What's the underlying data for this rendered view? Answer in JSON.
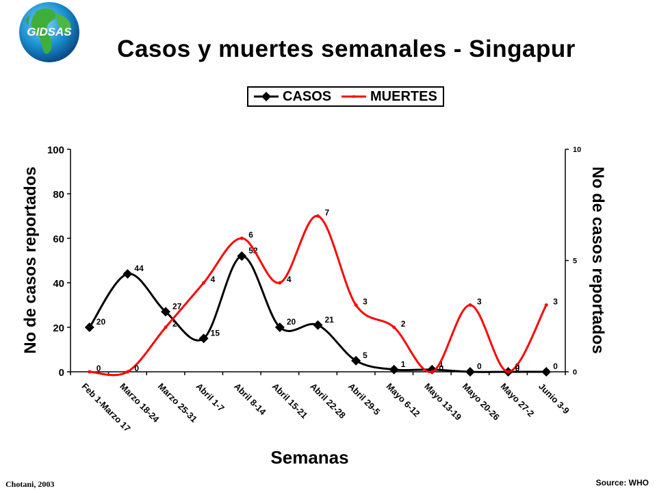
{
  "logo": {
    "text": "GIDSAS",
    "icon": "globe-icon"
  },
  "chart_data": {
    "type": "line",
    "title": "Casos y muertes semanales - Singapur",
    "xlabel": "Semanas",
    "ylabel": "No de casos reportados",
    "y2label": "No de casos reportados",
    "ylim": [
      0,
      100
    ],
    "yticks": [
      "0",
      "20",
      "40",
      "60",
      "80",
      "100"
    ],
    "y2lim": [
      0,
      10
    ],
    "y2ticks": [
      "0",
      "5",
      "10"
    ],
    "categories": [
      "Feb 1-Marzo 17",
      "Marzo 18-24",
      "Marzo 25-31",
      "Abril 1-7",
      "Abril 8-14",
      "Abril 15-21",
      "Abril 22-28",
      "Abril 29-5",
      "Mayo 6-12",
      "Mayo 13-19",
      "Mayo 20-26",
      "Mayo 27-2",
      "Junio 3-9"
    ],
    "series": [
      {
        "name": "CASOS",
        "axis": "left",
        "color": "#000000",
        "marker": "diamond",
        "values": [
          20,
          44,
          27,
          15,
          52,
          20,
          21,
          5,
          1,
          1,
          0,
          0,
          0
        ]
      },
      {
        "name": "MUERTES",
        "axis": "right",
        "color": "#ff0000",
        "marker": "dot",
        "values": [
          0,
          0,
          2,
          4,
          6,
          4,
          7,
          3,
          2,
          0,
          3,
          0,
          3
        ]
      }
    ],
    "legend_position": "top-center",
    "grid": false
  },
  "footer": {
    "author": "Chotani, 2003",
    "source": "Source: WHO"
  }
}
